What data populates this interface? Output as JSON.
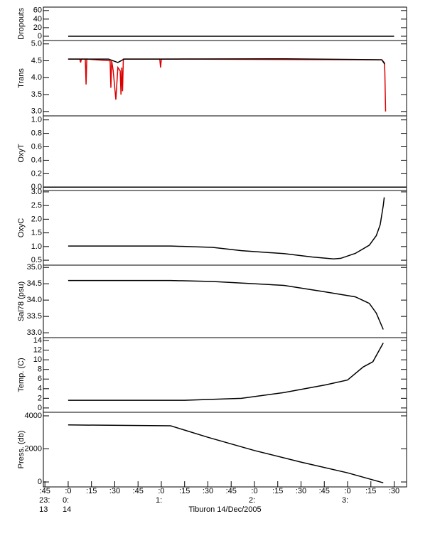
{
  "chart_data": [
    {
      "type": "line",
      "ylabel": "Dropouts",
      "xlim": [
        44,
        278
      ],
      "ylim": [
        -10,
        68
      ],
      "yticks": [
        0,
        20,
        40,
        60
      ],
      "series": [
        {
          "color": "#000000",
          "x": [
            60,
            270
          ],
          "values": [
            0,
            0
          ]
        }
      ]
    },
    {
      "type": "line",
      "ylabel": "Trans",
      "xlim": [
        44,
        278
      ],
      "ylim": [
        2.87,
        5.1
      ],
      "yticks": [
        {
          "value": 3.0,
          "label": "3.0"
        },
        3.5,
        {
          "value": 4.0,
          "label": "4.0"
        },
        4.5,
        {
          "value": 5.0,
          "label": "5.0"
        }
      ],
      "series": [
        {
          "color": "#dd0000",
          "x": [
            60,
            67.5,
            68,
            68.5,
            71,
            71.5,
            72,
            87,
            87.5,
            88,
            89,
            90.7,
            92,
            93.5,
            94,
            94.5,
            95,
            95.5,
            119,
            119.5,
            120,
            262,
            263.6,
            264,
            264.5
          ],
          "values": [
            4.55,
            4.55,
            4.45,
            4.55,
            4.55,
            3.8,
            4.55,
            4.5,
            3.7,
            4.5,
            4.2,
            3.35,
            4.3,
            4.2,
            3.5,
            4.3,
            3.6,
            4.55,
            4.55,
            4.3,
            4.55,
            4.53,
            4.45,
            4.2,
            3.0
          ]
        },
        {
          "color": "#000000",
          "x": [
            60,
            86,
            92,
            96,
            120,
            200,
            262,
            264
          ],
          "values": [
            4.55,
            4.55,
            4.45,
            4.55,
            4.55,
            4.56,
            4.53,
            4.4
          ]
        }
      ]
    },
    {
      "type": "line",
      "ylabel": "OxyT",
      "xlim": [
        44,
        278
      ],
      "ylim": [
        -0.05,
        1.06
      ],
      "yticks": [
        {
          "value": 0.0,
          "label": "0.0"
        },
        0.2,
        0.4,
        0.6,
        0.8,
        {
          "value": 1.0,
          "label": "1.0"
        }
      ],
      "series": [
        {
          "color": "#000000",
          "x": [
            44,
            278
          ],
          "values": [
            0,
            0
          ]
        }
      ]
    },
    {
      "type": "line",
      "ylabel": "OxyC",
      "xlim": [
        44,
        278
      ],
      "ylim": [
        0.32,
        3.05
      ],
      "yticks": [
        0.5,
        {
          "value": 1.0,
          "label": "1.0"
        },
        1.5,
        {
          "value": 2.0,
          "label": "2.0"
        },
        2.5,
        {
          "value": 3.0,
          "label": "3.0"
        }
      ],
      "series": [
        {
          "color": "#000000",
          "x": [
            60,
            126,
            153,
            171.6,
            199,
            217,
            231,
            235.6,
            245,
            254,
            258.5,
            261,
            263,
            263.6
          ],
          "values": [
            1.02,
            1.02,
            0.97,
            0.85,
            0.74,
            0.62,
            0.55,
            0.57,
            0.75,
            1.05,
            1.4,
            1.8,
            2.5,
            2.8
          ]
        }
      ]
    },
    {
      "type": "line",
      "ylabel": "Sal78 (psu)",
      "xlim": [
        44,
        278
      ],
      "ylim": [
        32.85,
        35.07
      ],
      "yticks": [
        {
          "value": 33.0,
          "label": "33.0"
        },
        33.5,
        {
          "value": 34.0,
          "label": "34.0"
        },
        34.5,
        {
          "value": 35.0,
          "label": "35.0"
        }
      ],
      "series": [
        {
          "color": "#000000",
          "x": [
            60,
            126,
            153,
            199,
            226,
            245,
            254,
            258.5,
            263
          ],
          "values": [
            34.6,
            34.6,
            34.57,
            34.45,
            34.25,
            34.1,
            33.9,
            33.6,
            33.1
          ]
        }
      ]
    },
    {
      "type": "line",
      "ylabel": "Temp. (C)",
      "xlim": [
        44,
        278
      ],
      "ylim": [
        -0.9,
        14.6
      ],
      "yticks": [
        0,
        2,
        4,
        6,
        8,
        10,
        12,
        14
      ],
      "series": [
        {
          "color": "#000000",
          "x": [
            60,
            135,
            171.6,
            199,
            226,
            240,
            250,
            256.3,
            263
          ],
          "values": [
            1.6,
            1.6,
            2.0,
            3.2,
            4.8,
            5.8,
            8.5,
            9.6,
            13.5
          ]
        }
      ]
    },
    {
      "type": "line",
      "ylabel": "Press. (db)",
      "xlim": [
        44,
        278
      ],
      "ylim": [
        -300,
        4215
      ],
      "yticks": [
        0,
        2000,
        4000
      ],
      "series": [
        {
          "color": "#000000",
          "x": [
            60,
            126,
            150,
            180,
            210,
            240,
            263
          ],
          "values": [
            3450,
            3400,
            2700,
            1900,
            1200,
            550,
            -50
          ]
        }
      ],
      "xlabel": "Tiburon 14/Dec/2005",
      "xticks": [
        {
          "value": 45,
          "label": ":45"
        },
        {
          "value": 60,
          "label": ":0"
        },
        {
          "value": 75,
          "label": ":15"
        },
        {
          "value": 90,
          "label": ":30"
        },
        {
          "value": 105,
          "label": ":45"
        },
        {
          "value": 120,
          "label": ":0"
        },
        {
          "value": 135,
          "label": ":15"
        },
        {
          "value": 150,
          "label": ":30"
        },
        {
          "value": 165,
          "label": ":45"
        },
        {
          "value": 180,
          "label": ":0"
        },
        {
          "value": 195,
          "label": ":15"
        },
        {
          "value": 210,
          "label": ":30"
        },
        {
          "value": 225,
          "label": ":45"
        },
        {
          "value": 240,
          "label": ":0"
        },
        {
          "value": 255,
          "label": ":15"
        },
        {
          "value": 270,
          "label": ":30"
        }
      ],
      "xticks_hour": [
        {
          "value": 45,
          "label": "23:"
        },
        {
          "value": 60,
          "label": "0:"
        },
        {
          "value": 120,
          "label": "1:"
        },
        {
          "value": 180,
          "label": "2:"
        },
        {
          "value": 240,
          "label": "3:"
        }
      ],
      "xticks_day": [
        {
          "value": 45,
          "label": "13"
        },
        {
          "value": 60,
          "label": "14"
        }
      ]
    }
  ]
}
